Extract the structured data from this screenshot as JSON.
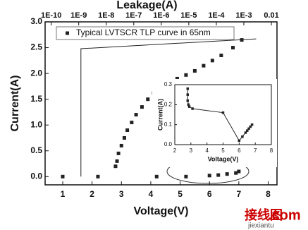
{
  "chart_data": [
    {
      "type": "scatter",
      "xlabel": "Voltage(V)",
      "ylabel": "Current(A)",
      "x2label": "Leakage(A)",
      "xlim": [
        0.4,
        8.3
      ],
      "xticks": [
        1,
        2,
        3,
        4,
        5,
        6,
        7,
        8
      ],
      "ylim": [
        -0.16,
        3.0
      ],
      "yticks": [
        {
          "value": 0,
          "label": "0.0"
        },
        0.5,
        {
          "value": 1,
          "label": "1.0"
        },
        1.5,
        {
          "value": 2,
          "label": "2.0"
        },
        2.5,
        {
          "value": 3,
          "label": "3.0"
        }
      ],
      "x2lim": [
        6e-11,
        0.016
      ],
      "x2scale": "log",
      "x2ticks": [
        {
          "value": 1e-10,
          "label": "1E-10"
        },
        {
          "value": 1e-09,
          "label": "1E-9"
        },
        {
          "value": 1e-08,
          "label": "1E-8"
        },
        {
          "value": 1e-07,
          "label": "1E-7"
        },
        {
          "value": 1e-06,
          "label": "1E-6"
        },
        {
          "value": 1e-05,
          "label": "1E-5"
        },
        {
          "value": 0.0001,
          "label": "1E-4"
        },
        {
          "value": 0.001,
          "label": "1E-3"
        },
        0.01
      ],
      "series": [
        {
          "name": "Typical LVTSCR TLP curve in 65nm",
          "color": "#222222",
          "marker": true,
          "x": [
            1,
            2.2,
            4.2,
            5.2,
            6.0,
            6.3,
            6.6,
            6.9,
            7.0,
            2.8,
            2.85,
            2.9,
            3.0,
            3.1,
            3.2,
            3.35,
            3.5,
            3.7,
            3.9,
            4.1,
            4.3,
            4.6,
            4.9,
            5.2,
            5.5,
            5.8,
            6.1,
            6.4,
            6.8,
            7.1
          ],
          "values": [
            0,
            0,
            0,
            0,
            0.02,
            0.03,
            0.05,
            0.07,
            0.1,
            0.2,
            0.3,
            0.45,
            0.6,
            0.75,
            0.9,
            1.05,
            1.2,
            1.35,
            1.5,
            1.62,
            1.72,
            1.8,
            1.9,
            1.97,
            2.05,
            2.15,
            2.25,
            2.35,
            2.5,
            2.65
          ]
        },
        {
          "color": "#222222",
          "axis": "x2",
          "line": true,
          "x": [
            1.2e-09,
            1.2e-09,
            0.0028
          ],
          "values": [
            0,
            2.48,
            2.67
          ]
        }
      ]
    },
    {
      "type": "scatter",
      "xlabel": "Voltage(V)",
      "ylabel": "Current(A)",
      "xlim": [
        2,
        8
      ],
      "xticks": [
        2,
        3,
        4,
        5,
        6,
        7,
        8
      ],
      "ylim": [
        0,
        0.3
      ],
      "yticks": [
        {
          "value": 0,
          "label": "0.0"
        },
        0.1,
        0.2,
        0.3
      ],
      "series": [
        {
          "color": "#222222",
          "marker": true,
          "line": true,
          "x": [
            2.8,
            2.8,
            2.8,
            2.85,
            2.9,
            3.1,
            5.0,
            6.0,
            6.2,
            6.4,
            6.5,
            6.6,
            6.7,
            6.8
          ],
          "values": [
            0.28,
            0.25,
            0.22,
            0.2,
            0.19,
            0.18,
            0.16,
            0.02,
            0.04,
            0.06,
            0.07,
            0.08,
            0.09,
            0.1
          ]
        }
      ]
    }
  ],
  "watermark": {
    "text": "接线图",
    "site": ".com",
    "url": "jiexiantu"
  }
}
